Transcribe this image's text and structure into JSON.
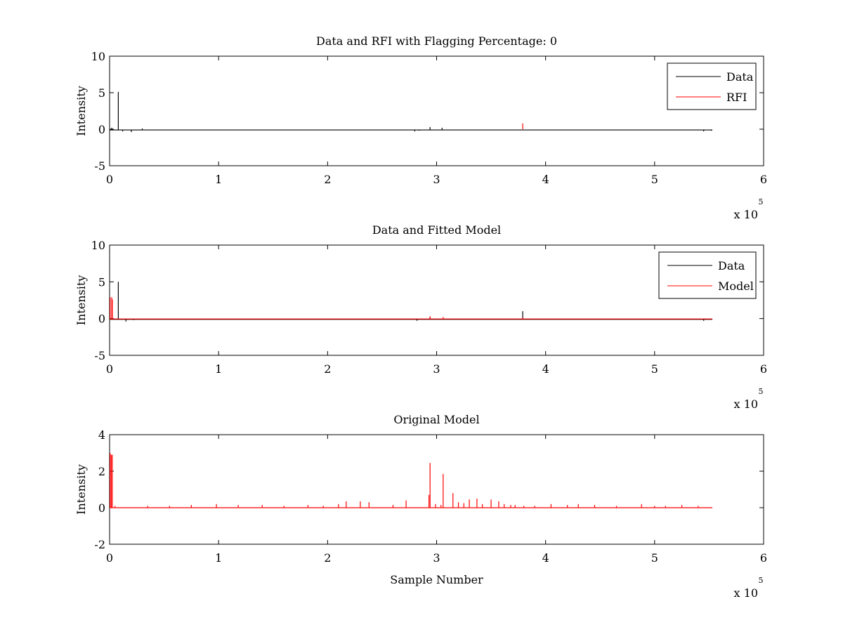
{
  "chart_data": [
    {
      "type": "line",
      "title": "Data and RFI with Flagging Percentage: 0",
      "xlabel": "",
      "ylabel": "Intensity",
      "xlim": [
        0,
        600000
      ],
      "ylim": [
        -5,
        10
      ],
      "xticks": [
        0,
        1,
        2,
        3,
        4,
        5,
        6
      ],
      "yticks": [
        -5,
        0,
        5,
        10
      ],
      "x_exponent_label": "x 10",
      "x_exponent": "5",
      "grid": false,
      "legend_position": "top-right",
      "series": [
        {
          "name": "Data",
          "color": "#000000",
          "baseline": -0.1,
          "spikes": [
            [
              2000,
              -0.1,
              0.2
            ],
            [
              8000,
              -0.1,
              5.1
            ],
            [
              12000,
              -0.1,
              -0.3
            ],
            [
              20000,
              -0.1,
              -0.4
            ],
            [
              30000,
              -0.1,
              0.1
            ],
            [
              280000,
              -0.1,
              -0.3
            ],
            [
              284000,
              -0.1,
              -0.2
            ],
            [
              294000,
              -0.1,
              0.3
            ],
            [
              305000,
              -0.1,
              0.2
            ],
            [
              545000,
              -0.1,
              -0.3
            ],
            [
              552000,
              -0.1,
              -0.2
            ]
          ],
          "x_end": 553000
        },
        {
          "name": "RFI",
          "color": "#ff0000",
          "baseline": null,
          "spikes": [
            [
              379000,
              0,
              0.8
            ]
          ],
          "x_end": 553000
        }
      ]
    },
    {
      "type": "line",
      "title": "Data and Fitted Model",
      "xlabel": "",
      "ylabel": "Intensity",
      "xlim": [
        0,
        600000
      ],
      "ylim": [
        -5,
        10
      ],
      "xticks": [
        0,
        1,
        2,
        3,
        4,
        5,
        6
      ],
      "yticks": [
        -5,
        0,
        5,
        10
      ],
      "x_exponent_label": "x 10",
      "x_exponent": "5",
      "grid": false,
      "legend_position": "top-right",
      "series": [
        {
          "name": "Data",
          "color": "#000000",
          "baseline": -0.1,
          "spikes": [
            [
              8000,
              -0.1,
              5.0
            ],
            [
              15000,
              -0.1,
              -0.4
            ],
            [
              22000,
              -0.1,
              -0.2
            ],
            [
              282000,
              -0.1,
              -0.3
            ],
            [
              294000,
              -0.1,
              0.3
            ],
            [
              379000,
              -0.1,
              1.0
            ],
            [
              545000,
              -0.1,
              -0.3
            ]
          ],
          "x_end": 553000
        },
        {
          "name": "Model",
          "color": "#ff0000",
          "baseline": -0.05,
          "spikes": [
            [
              500,
              -0.05,
              2.9
            ],
            [
              2000,
              -0.05,
              2.9
            ],
            [
              2500,
              -0.05,
              2.6
            ],
            [
              294000,
              -0.05,
              0.3
            ],
            [
              306000,
              -0.05,
              0.2
            ],
            [
              379000,
              -0.05,
              0.1
            ]
          ],
          "x_end": 553000
        }
      ]
    },
    {
      "type": "line",
      "title": "Original Model",
      "xlabel": "Sample Number",
      "ylabel": "Intensity",
      "xlim": [
        0,
        600000
      ],
      "ylim": [
        -2,
        4
      ],
      "xticks": [
        0,
        1,
        2,
        3,
        4,
        5,
        6
      ],
      "yticks": [
        -2,
        0,
        2,
        4
      ],
      "x_exponent_label": "x 10",
      "x_exponent": "5",
      "grid": false,
      "legend_position": "none",
      "series": [
        {
          "name": "",
          "color": "#ff0000",
          "baseline": 0,
          "spikes": [
            [
              500,
              0,
              3.0
            ],
            [
              1500,
              0,
              2.9
            ],
            [
              2500,
              0,
              2.9
            ],
            [
              5000,
              0,
              0.1
            ],
            [
              35000,
              0,
              0.1
            ],
            [
              55000,
              0,
              0.1
            ],
            [
              75000,
              0,
              0.15
            ],
            [
              98000,
              0,
              0.2
            ],
            [
              118000,
              0,
              0.15
            ],
            [
              140000,
              0,
              0.15
            ],
            [
              160000,
              0,
              0.1
            ],
            [
              182000,
              0,
              0.15
            ],
            [
              196000,
              0,
              0.1
            ],
            [
              210000,
              0,
              0.2
            ],
            [
              217000,
              0,
              0.35
            ],
            [
              230000,
              0,
              0.35
            ],
            [
              238000,
              0,
              0.3
            ],
            [
              260000,
              0,
              0.15
            ],
            [
              272000,
              0,
              0.4
            ],
            [
              293000,
              0,
              0.7
            ],
            [
              294000,
              0,
              2.45
            ],
            [
              299000,
              0,
              0.2
            ],
            [
              304000,
              0,
              0.15
            ],
            [
              306000,
              0,
              1.85
            ],
            [
              315000,
              0,
              0.8
            ],
            [
              320000,
              0,
              0.3
            ],
            [
              325000,
              0,
              0.25
            ],
            [
              330000,
              0,
              0.45
            ],
            [
              337000,
              0,
              0.5
            ],
            [
              342000,
              0,
              0.2
            ],
            [
              350000,
              0,
              0.45
            ],
            [
              357000,
              0,
              0.35
            ],
            [
              362000,
              0,
              0.2
            ],
            [
              368000,
              0,
              0.15
            ],
            [
              372000,
              0,
              0.15
            ],
            [
              380000,
              0,
              0.1
            ],
            [
              390000,
              0,
              0.1
            ],
            [
              405000,
              0,
              0.2
            ],
            [
              420000,
              0,
              0.15
            ],
            [
              430000,
              0,
              0.2
            ],
            [
              445000,
              0,
              0.15
            ],
            [
              465000,
              0,
              0.1
            ],
            [
              488000,
              0,
              0.2
            ],
            [
              500000,
              0,
              0.1
            ],
            [
              510000,
              0,
              0.1
            ],
            [
              525000,
              0,
              0.15
            ],
            [
              540000,
              0,
              0.1
            ]
          ],
          "x_end": 553000
        }
      ]
    }
  ]
}
